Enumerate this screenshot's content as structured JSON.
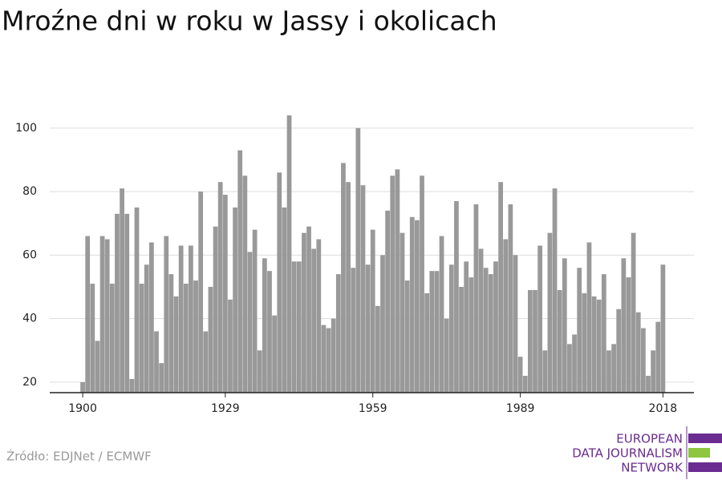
{
  "chart_data": {
    "type": "bar",
    "title": "Mroźne dni w roku w Jassy i okolicach",
    "source": "Źródło: EDJNet / ECMWF",
    "logo": [
      "EUROPEAN",
      "DATA JOURNALISM",
      "NETWORK"
    ],
    "color": "#999999",
    "x": [
      1900,
      1901,
      1902,
      1903,
      1904,
      1905,
      1906,
      1907,
      1908,
      1909,
      1910,
      1911,
      1912,
      1913,
      1914,
      1915,
      1916,
      1917,
      1918,
      1919,
      1920,
      1921,
      1922,
      1923,
      1924,
      1925,
      1926,
      1927,
      1928,
      1929,
      1930,
      1931,
      1932,
      1933,
      1934,
      1935,
      1936,
      1937,
      1938,
      1939,
      1940,
      1941,
      1942,
      1943,
      1944,
      1945,
      1946,
      1947,
      1948,
      1949,
      1950,
      1951,
      1952,
      1953,
      1954,
      1955,
      1956,
      1957,
      1958,
      1959,
      1960,
      1961,
      1962,
      1963,
      1964,
      1965,
      1966,
      1967,
      1968,
      1969,
      1970,
      1971,
      1972,
      1973,
      1974,
      1975,
      1976,
      1977,
      1978,
      1979,
      1980,
      1981,
      1982,
      1983,
      1984,
      1985,
      1986,
      1987,
      1988,
      1989,
      1990,
      1991,
      1992,
      1993,
      1994,
      1995,
      1996,
      1997,
      1998,
      1999,
      2000,
      2001,
      2002,
      2003,
      2004,
      2005,
      2006,
      2007,
      2008,
      2009,
      2010,
      2011,
      2012,
      2013,
      2014,
      2015,
      2016,
      2017,
      2018
    ],
    "values": [
      20,
      66,
      51,
      33,
      66,
      65,
      51,
      73,
      81,
      73,
      21,
      75,
      51,
      57,
      64,
      36,
      26,
      66,
      54,
      47,
      63,
      51,
      63,
      52,
      80,
      36,
      50,
      69,
      83,
      79,
      46,
      75,
      93,
      85,
      61,
      68,
      30,
      59,
      55,
      41,
      86,
      75,
      104,
      58,
      58,
      67,
      69,
      62,
      65,
      38,
      37,
      40,
      54,
      89,
      83,
      56,
      100,
      82,
      57,
      68,
      44,
      60,
      74,
      85,
      87,
      67,
      52,
      72,
      71,
      85,
      48,
      55,
      55,
      66,
      40,
      57,
      77,
      50,
      58,
      53,
      76,
      62,
      56,
      54,
      58,
      83,
      65,
      76,
      60,
      28,
      22,
      49,
      49,
      63,
      30,
      67,
      81,
      49,
      59,
      32,
      35,
      56,
      48,
      64,
      47,
      46,
      54,
      30,
      32,
      43,
      59,
      53,
      67,
      42,
      37,
      22,
      30,
      39,
      57
    ],
    "xlim": [
      1893.3,
      2024.3
    ],
    "xticks": [
      1900,
      1929,
      1959,
      1989,
      2018
    ],
    "ylim": [
      16.7,
      105
    ],
    "yticks": [
      20,
      40,
      60,
      80,
      100
    ],
    "grid": true
  }
}
